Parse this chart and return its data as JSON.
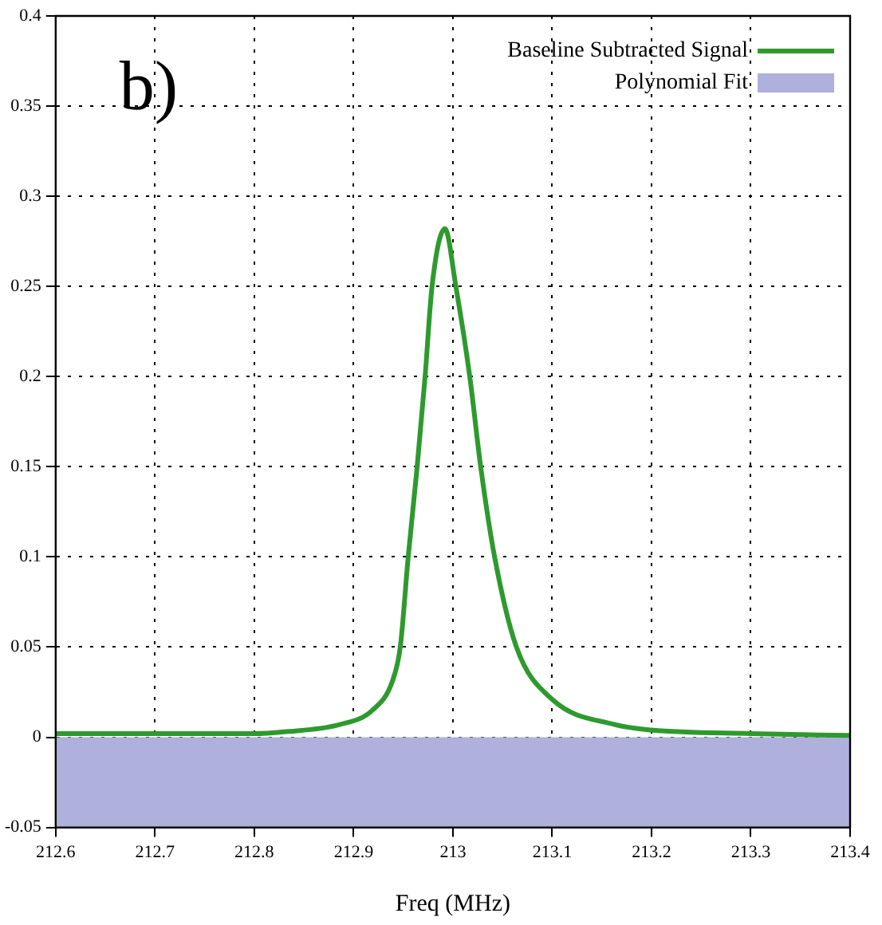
{
  "chart_data": {
    "type": "line",
    "xlabel": "Freq (MHz)",
    "annotations": [
      "b)"
    ],
    "xlim": [
      212.6,
      213.4
    ],
    "xticks": [
      212.6,
      212.7,
      212.8,
      212.9,
      213,
      213.1,
      213.2,
      213.3,
      213.4
    ],
    "ylim": [
      -0.05,
      0.4
    ],
    "yticks": [
      -0.05,
      0,
      0.05,
      0.1,
      0.15,
      0.2,
      0.25,
      0.3,
      0.35,
      0.4
    ],
    "grid": true,
    "legend": "top right",
    "marker": "none",
    "line_style": "solid",
    "series": [
      {
        "name": "Baseline Subtracted Signal",
        "color": "#2e9a2e",
        "x": [
          212.6,
          212.7,
          212.8,
          212.83,
          212.886,
          212.919,
          212.939,
          212.947,
          212.955,
          212.964,
          212.972,
          212.979,
          212.992,
          213.003,
          213.017,
          213.028,
          213.042,
          213.064,
          213.1,
          213.163,
          213.2,
          213.3,
          213.4
        ],
        "values": [
          0.002,
          0.002,
          0.002,
          0.003,
          0.007,
          0.015,
          0.031,
          0.05,
          0.1,
          0.15,
          0.2,
          0.25,
          0.282,
          0.25,
          0.2,
          0.15,
          0.1,
          0.05,
          0.021,
          0.007,
          0.004,
          0.002,
          0.001
        ]
      }
    ],
    "bands": [
      {
        "axis": "y",
        "from": -0.05,
        "to": 0,
        "label": "Polynomial Fit",
        "color": "#b0b0dc"
      }
    ]
  }
}
